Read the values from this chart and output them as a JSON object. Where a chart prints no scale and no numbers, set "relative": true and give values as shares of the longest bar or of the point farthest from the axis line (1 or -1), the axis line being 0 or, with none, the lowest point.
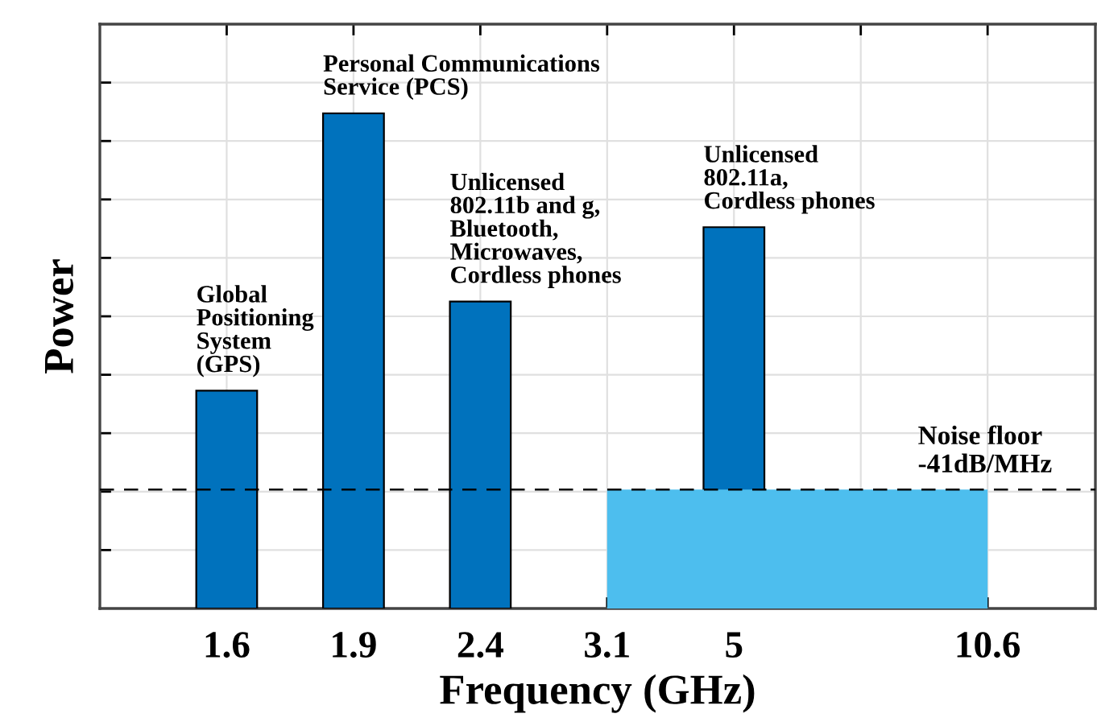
{
  "chart_data": {
    "type": "bar",
    "relative": true,
    "xlabel": "Frequency (GHz)",
    "ylabel": "Power",
    "categories": [
      "1.6",
      "1.9",
      "2.4",
      "3.1",
      "5",
      null,
      "10.6"
    ],
    "series": [
      {
        "color": "#0072bd",
        "values": [
          0.44,
          1,
          0.62,
          null,
          0.77,
          null,
          null
        ]
      },
      {
        "type": "area",
        "color": "#4dbeee",
        "values": [
          null,
          null,
          null,
          0.24,
          0.24,
          0.24,
          0.24
        ]
      }
    ],
    "ref_lines": [
      {
        "axis": "y",
        "value": 0.24,
        "label": "Noise floor\n-41dB/MHz",
        "color": "#000000",
        "line_style": "dashed"
      }
    ],
    "annotations": [
      {
        "text": "Global\nPositioning\nSystem\n(GPS)",
        "x": "1.6",
        "y": 0.44
      },
      {
        "text": "Personal Communications\nService (PCS)",
        "x": "1.9",
        "y": 1
      },
      {
        "text": "Unlicensed\n802.11b and g,\nBluetooth,\nMicrowaves,\nCordless phones",
        "x": "2.4",
        "y": 0.62
      },
      {
        "text": "Unlicensed\n802.11a,\nCordless phones",
        "x": "5",
        "y": 0.77
      }
    ],
    "grid": true
  }
}
